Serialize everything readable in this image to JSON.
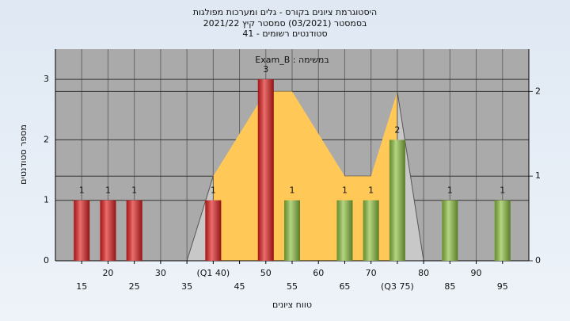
{
  "chart_data": {
    "type": "bar",
    "title": [
      "היסטוגרמת ציונים בקורס - גלים ומערכות מפולגות",
      "בסמסטר  (03/2021)  סמסטר קיץ  2021/22",
      "41 - סטודנטים רשומים"
    ],
    "annotation": "Exam_B : במשימה",
    "xlabel": "טווח ציונים",
    "ylabel": "מספר סטודנטים",
    "categories": [
      "15",
      "20",
      "25",
      "30",
      "35",
      "(Q1 40)",
      "45",
      "50",
      "55",
      "60",
      "65",
      "70",
      "(Q3 75)",
      "80",
      "85",
      "90",
      "95"
    ],
    "values": [
      1,
      1,
      1,
      0,
      0,
      1,
      0,
      3,
      1,
      0,
      1,
      1,
      2,
      0,
      1,
      0,
      1
    ],
    "colors": [
      "#e02020",
      "#e02020",
      "#e02020",
      "#e02020",
      "#e02020",
      "#e02020",
      "#e02020",
      "#e02020",
      "#8cbf3f",
      "#8cbf3f",
      "#8cbf3f",
      "#8cbf3f",
      "#8cbf3f",
      "#8cbf3f",
      "#8cbf3f",
      "#8cbf3f",
      "#8cbf3f"
    ],
    "areas": [
      {
        "color": "#ffc857",
        "axis": "y2",
        "values": [
          null,
          null,
          null,
          null,
          null,
          1,
          1.5,
          2,
          2,
          1.5,
          1,
          1,
          2,
          null,
          null,
          null,
          null
        ]
      },
      {
        "color": "#c8c8c8",
        "axis": "y2",
        "values": [
          null,
          null,
          null,
          null,
          0,
          1,
          null,
          null,
          null,
          null,
          null,
          null,
          2,
          0,
          null,
          null,
          null
        ]
      }
    ],
    "ylim": [
      0,
      3.5
    ],
    "yticks": [
      0,
      1,
      2,
      3
    ],
    "y2lim": [
      0,
      2.5
    ],
    "y2ticks": [
      0,
      1,
      2
    ],
    "grid": true
  }
}
